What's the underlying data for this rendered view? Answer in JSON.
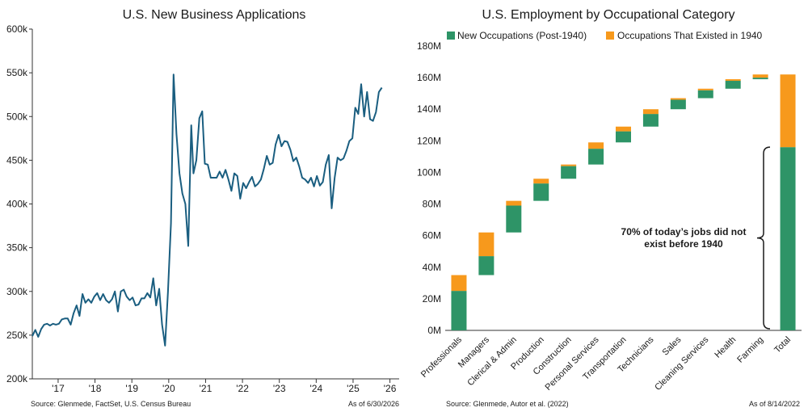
{
  "chart_data": [
    {
      "type": "line",
      "title": "U.S. New Business Applications",
      "xlabel": "",
      "ylabel": "",
      "ylim": [
        200000,
        600000
      ],
      "xlim": [
        2016.3,
        2026.25
      ],
      "y_ticks": [
        {
          "value": 200000,
          "label": "200k"
        },
        {
          "value": 250000,
          "label": "250k"
        },
        {
          "value": 300000,
          "label": "300k"
        },
        {
          "value": 350000,
          "label": "350k"
        },
        {
          "value": 400000,
          "label": "400k"
        },
        {
          "value": 450000,
          "label": "450k"
        },
        {
          "value": 500000,
          "label": "500k"
        },
        {
          "value": 550000,
          "label": "550k"
        },
        {
          "value": 600000,
          "label": "600k"
        }
      ],
      "x_ticks": [
        {
          "value": 2017,
          "label": "'17"
        },
        {
          "value": 2018,
          "label": "'18"
        },
        {
          "value": 2019,
          "label": "'19"
        },
        {
          "value": 2020,
          "label": "'20"
        },
        {
          "value": 2021,
          "label": "'21"
        },
        {
          "value": 2022,
          "label": "'22"
        },
        {
          "value": 2023,
          "label": "'23"
        },
        {
          "value": 2024,
          "label": "'24"
        },
        {
          "value": 2025,
          "label": "'25"
        },
        {
          "value": 2026,
          "label": "'26"
        }
      ],
      "series": [
        {
          "color": "#1a5e80",
          "points": [
            [
              2016.3,
              249000
            ],
            [
              2016.38,
              256000
            ],
            [
              2016.46,
              248000
            ],
            [
              2016.54,
              257000
            ],
            [
              2016.62,
              262000
            ],
            [
              2016.7,
              263000
            ],
            [
              2016.78,
              261000
            ],
            [
              2016.86,
              263000
            ],
            [
              2016.94,
              262000
            ],
            [
              2017.02,
              263000
            ],
            [
              2017.1,
              268000
            ],
            [
              2017.18,
              269000
            ],
            [
              2017.26,
              269000
            ],
            [
              2017.34,
              262000
            ],
            [
              2017.42,
              275000
            ],
            [
              2017.5,
              284000
            ],
            [
              2017.58,
              272000
            ],
            [
              2017.66,
              297000
            ],
            [
              2017.74,
              287000
            ],
            [
              2017.82,
              291000
            ],
            [
              2017.9,
              287000
            ],
            [
              2017.98,
              294000
            ],
            [
              2018.06,
              298000
            ],
            [
              2018.14,
              290000
            ],
            [
              2018.22,
              297000
            ],
            [
              2018.3,
              290000
            ],
            [
              2018.38,
              287000
            ],
            [
              2018.46,
              291000
            ],
            [
              2018.54,
              300000
            ],
            [
              2018.62,
              277000
            ],
            [
              2018.7,
              300000
            ],
            [
              2018.78,
              302000
            ],
            [
              2018.86,
              294000
            ],
            [
              2018.94,
              290000
            ],
            [
              2019.02,
              293000
            ],
            [
              2019.1,
              284000
            ],
            [
              2019.18,
              285000
            ],
            [
              2019.26,
              292000
            ],
            [
              2019.34,
              292000
            ],
            [
              2019.42,
              298000
            ],
            [
              2019.5,
              293000
            ],
            [
              2019.58,
              315000
            ],
            [
              2019.66,
              284000
            ],
            [
              2019.74,
              303000
            ],
            [
              2019.82,
              262000
            ],
            [
              2019.9,
              238000
            ],
            [
              2019.98,
              300000
            ],
            [
              2020.06,
              378000
            ],
            [
              2020.13,
              548000
            ],
            [
              2020.21,
              480000
            ],
            [
              2020.29,
              435000
            ],
            [
              2020.37,
              412000
            ],
            [
              2020.45,
              400000
            ],
            [
              2020.53,
              352000
            ],
            [
              2020.61,
              490000
            ],
            [
              2020.67,
              435000
            ],
            [
              2020.75,
              450000
            ],
            [
              2020.83,
              498000
            ],
            [
              2020.91,
              506000
            ],
            [
              2020.98,
              446000
            ],
            [
              2021.06,
              445000
            ],
            [
              2021.14,
              430000
            ],
            [
              2021.22,
              430000
            ],
            [
              2021.3,
              430000
            ],
            [
              2021.38,
              437000
            ],
            [
              2021.46,
              430000
            ],
            [
              2021.54,
              439000
            ],
            [
              2021.62,
              428000
            ],
            [
              2021.7,
              415000
            ],
            [
              2021.78,
              435000
            ],
            [
              2021.86,
              432000
            ],
            [
              2021.94,
              406000
            ],
            [
              2022.02,
              424000
            ],
            [
              2022.1,
              418000
            ],
            [
              2022.18,
              425000
            ],
            [
              2022.26,
              431000
            ],
            [
              2022.34,
              420000
            ],
            [
              2022.42,
              423000
            ],
            [
              2022.5,
              428000
            ],
            [
              2022.58,
              440000
            ],
            [
              2022.66,
              455000
            ],
            [
              2022.74,
              445000
            ],
            [
              2022.82,
              447000
            ],
            [
              2022.9,
              468000
            ],
            [
              2022.98,
              479000
            ],
            [
              2023.06,
              466000
            ],
            [
              2023.14,
              472000
            ],
            [
              2023.22,
              471000
            ],
            [
              2023.3,
              462000
            ],
            [
              2023.38,
              449000
            ],
            [
              2023.46,
              453000
            ],
            [
              2023.54,
              443000
            ],
            [
              2023.62,
              430000
            ],
            [
              2023.7,
              428000
            ],
            [
              2023.78,
              424000
            ],
            [
              2023.86,
              430000
            ],
            [
              2023.94,
              420000
            ],
            [
              2024.02,
              432000
            ],
            [
              2024.1,
              421000
            ],
            [
              2024.18,
              425000
            ],
            [
              2024.26,
              445000
            ],
            [
              2024.34,
              456000
            ],
            [
              2024.42,
              395000
            ],
            [
              2024.5,
              430000
            ],
            [
              2024.58,
              453000
            ],
            [
              2024.66,
              450000
            ],
            [
              2024.74,
              452000
            ],
            [
              2024.82,
              461000
            ],
            [
              2024.9,
              472000
            ],
            [
              2024.98,
              475000
            ],
            [
              2025.06,
              510000
            ],
            [
              2025.14,
              503000
            ],
            [
              2025.22,
              537000
            ],
            [
              2025.3,
              500000
            ],
            [
              2025.38,
              528000
            ],
            [
              2025.46,
              497000
            ],
            [
              2025.54,
              495000
            ],
            [
              2025.62,
              505000
            ],
            [
              2025.7,
              528000
            ],
            [
              2025.78,
              533000
            ]
          ]
        }
      ]
    },
    {
      "type": "bar",
      "subtype": "waterfall-stacked",
      "title": "U.S. Employment by Occupational Category",
      "xlabel": "",
      "ylabel": "",
      "ylim": [
        0,
        180
      ],
      "y_ticks": [
        {
          "value": 0,
          "label": "0M"
        },
        {
          "value": 20,
          "label": "20M"
        },
        {
          "value": 40,
          "label": "40M"
        },
        {
          "value": 60,
          "label": "60M"
        },
        {
          "value": 80,
          "label": "80M"
        },
        {
          "value": 100,
          "label": "100M"
        },
        {
          "value": 120,
          "label": "120M"
        },
        {
          "value": 140,
          "label": "140M"
        },
        {
          "value": 160,
          "label": "160M"
        },
        {
          "value": 180,
          "label": "180M"
        }
      ],
      "categories": [
        "Professionals",
        "Managers",
        "Clerical & Admin",
        "Production",
        "Construction",
        "Personal Services",
        "Transportation",
        "Technicians",
        "Sales",
        "Cleaning Services",
        "Health",
        "Farming",
        "Total"
      ],
      "base": [
        0,
        35,
        62,
        82,
        96,
        105,
        119,
        129,
        140,
        147,
        153,
        159,
        0
      ],
      "legend_position": "top",
      "series": [
        {
          "name": "New Occupations (Post-1940)",
          "color": "#2e9467",
          "values": [
            25,
            12,
            17,
            11,
            8,
            10,
            7,
            8,
            6,
            5,
            5,
            1,
            116
          ]
        },
        {
          "name": "Occupations That Existed in 1940",
          "color": "#f7991c",
          "values": [
            10,
            15,
            3,
            3,
            1,
            4,
            3,
            3,
            1,
            1,
            1,
            2,
            46
          ]
        }
      ],
      "annotation": {
        "lines": [
          "70% of today’s jobs did not",
          "exist before 1940"
        ],
        "bracket_range": [
          1,
          116
        ]
      }
    }
  ],
  "footer": {
    "left_source": "Source: Glenmede, FactSet, U.S. Census Bureau",
    "left_asof": "As of 6/30/2026",
    "right_source": "Source: Glenmede, Autor et al. (2022)",
    "right_asof": "As of 8/14/2022"
  },
  "colors": {
    "axis": "#333333",
    "text": "#1a1a1a"
  }
}
